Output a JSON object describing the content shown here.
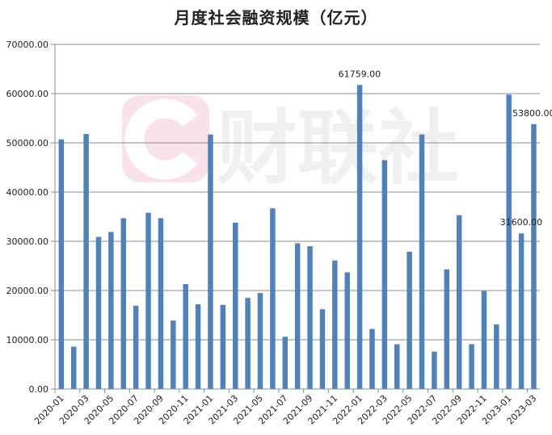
{
  "chart_data": {
    "type": "bar",
    "title": "月度社会融资规模（亿元）",
    "xlabel": "",
    "ylabel": "",
    "ylim": [
      0,
      70000
    ],
    "yticks": [
      "0.00",
      "10000.00",
      "20000.00",
      "30000.00",
      "40000.00",
      "50000.00",
      "60000.00",
      "70000.00"
    ],
    "grid": true,
    "color": "#4f81bd",
    "categories": [
      "2020-01",
      "2020-02",
      "2020-03",
      "2020-04",
      "2020-05",
      "2020-06",
      "2020-07",
      "2020-08",
      "2020-09",
      "2020-10",
      "2020-11",
      "2020-12",
      "2021-01",
      "2021-02",
      "2021-03",
      "2021-04",
      "2021-05",
      "2021-06",
      "2021-07",
      "2021-08",
      "2021-09",
      "2021-10",
      "2021-11",
      "2021-12",
      "2022-01",
      "2022-02",
      "2022-03",
      "2022-04",
      "2022-05",
      "2022-06",
      "2022-07",
      "2022-08",
      "2022-09",
      "2022-10",
      "2022-11",
      "2022-12",
      "2023-01",
      "2023-02",
      "2023-03"
    ],
    "xtick_labels": [
      "2020-01",
      "2020-03",
      "2020-05",
      "2020-07",
      "2020-09",
      "2020-11",
      "2021-01",
      "2021-03",
      "2021-05",
      "2021-07",
      "2021-09",
      "2021-11",
      "2022-01",
      "2022-03",
      "2022-05",
      "2022-07",
      "2022-09",
      "2022-11",
      "2023-01",
      "2023-03"
    ],
    "values": [
      50700,
      8600,
      51800,
      30900,
      31900,
      34700,
      16900,
      35800,
      34700,
      13900,
      21300,
      17200,
      51700,
      17100,
      33800,
      18500,
      19500,
      36700,
      10600,
      29600,
      29000,
      16200,
      26100,
      23700,
      61759,
      12200,
      46500,
      9100,
      27900,
      51700,
      7600,
      24300,
      35300,
      9100,
      19900,
      13100,
      59800,
      31600,
      53800
    ],
    "data_labels": [
      {
        "category": "2022-01",
        "text": "61759.00"
      },
      {
        "category": "2023-02",
        "text": "31600.00"
      },
      {
        "category": "2023-03",
        "text": "53800.00"
      }
    ]
  },
  "watermark": "财联社"
}
